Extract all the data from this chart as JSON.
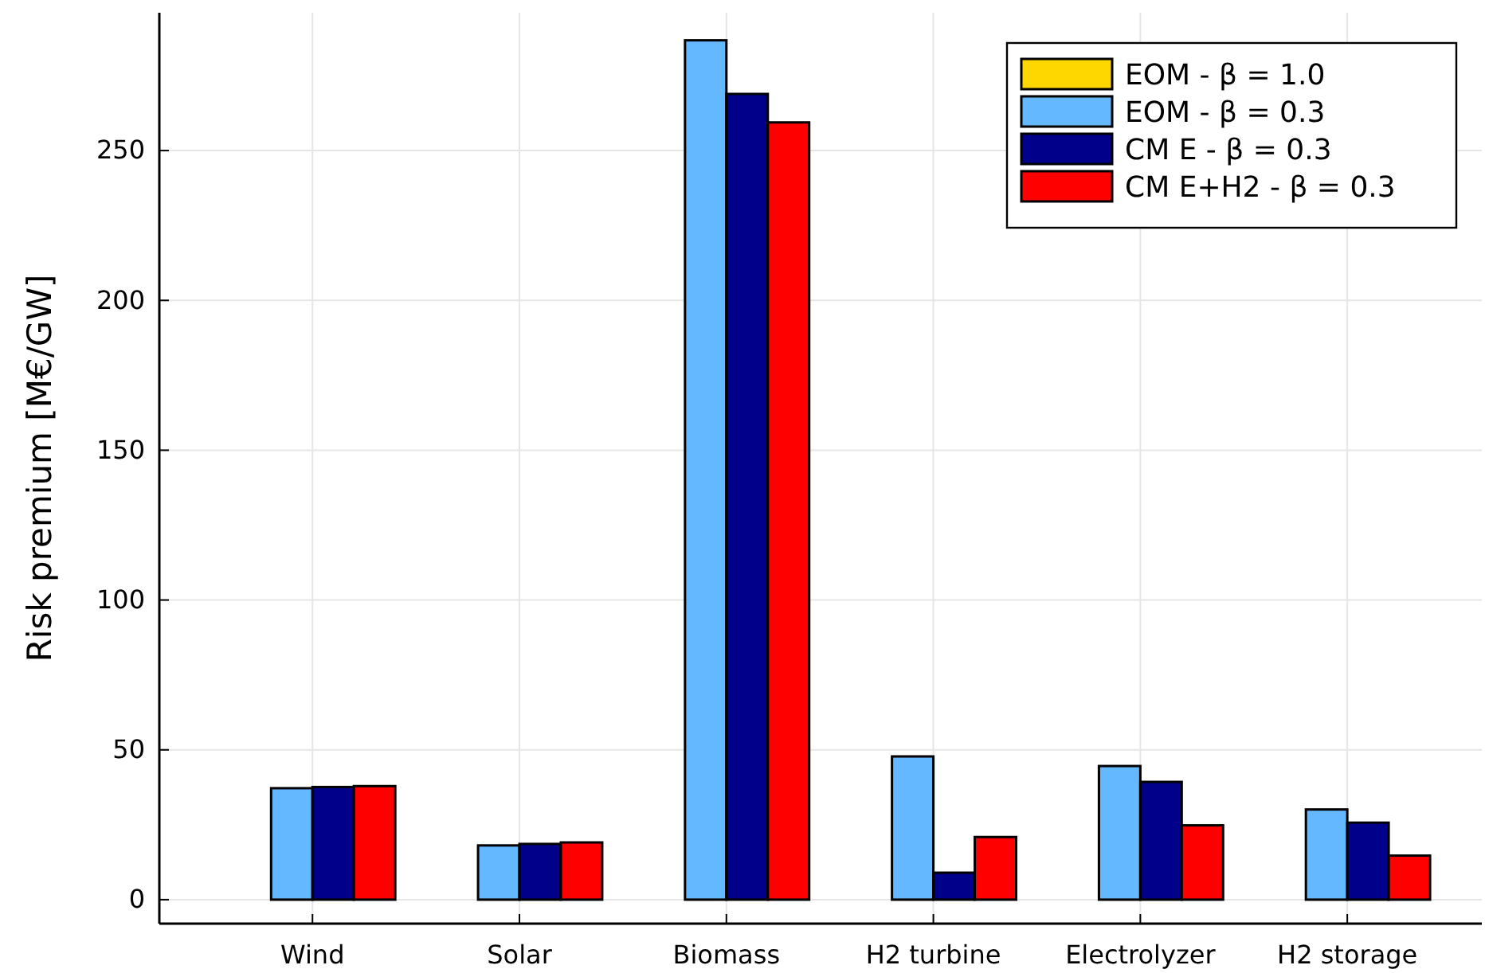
{
  "chart_data": {
    "type": "bar",
    "ylabel": "Risk premium [M€/GW]",
    "categories": [
      "Wind",
      "Solar",
      "Biomass",
      "H2 turbine",
      "Electrolyzer",
      "H2 storage"
    ],
    "series": [
      {
        "name": "EOM - β = 1.0",
        "color": "#ffd700",
        "values": [
          0,
          0,
          0,
          0,
          0,
          0
        ]
      },
      {
        "name": "EOM - β = 0.3",
        "color": "#63b8ff",
        "values": [
          37.2,
          18.1,
          286.8,
          47.8,
          44.6,
          30.1
        ]
      },
      {
        "name": "CM E - β = 0.3",
        "color": "#00008b",
        "values": [
          37.6,
          18.6,
          268.9,
          9.0,
          39.3,
          25.7
        ]
      },
      {
        "name": "CM E+H2 - β = 0.3",
        "color": "#ff0000",
        "values": [
          37.9,
          19.1,
          259.4,
          20.9,
          24.8,
          14.7
        ]
      }
    ],
    "ylim": [
      -8,
      296
    ],
    "yticks": [
      0,
      50,
      100,
      150,
      200,
      250
    ],
    "grid": true,
    "legend": "top right"
  }
}
